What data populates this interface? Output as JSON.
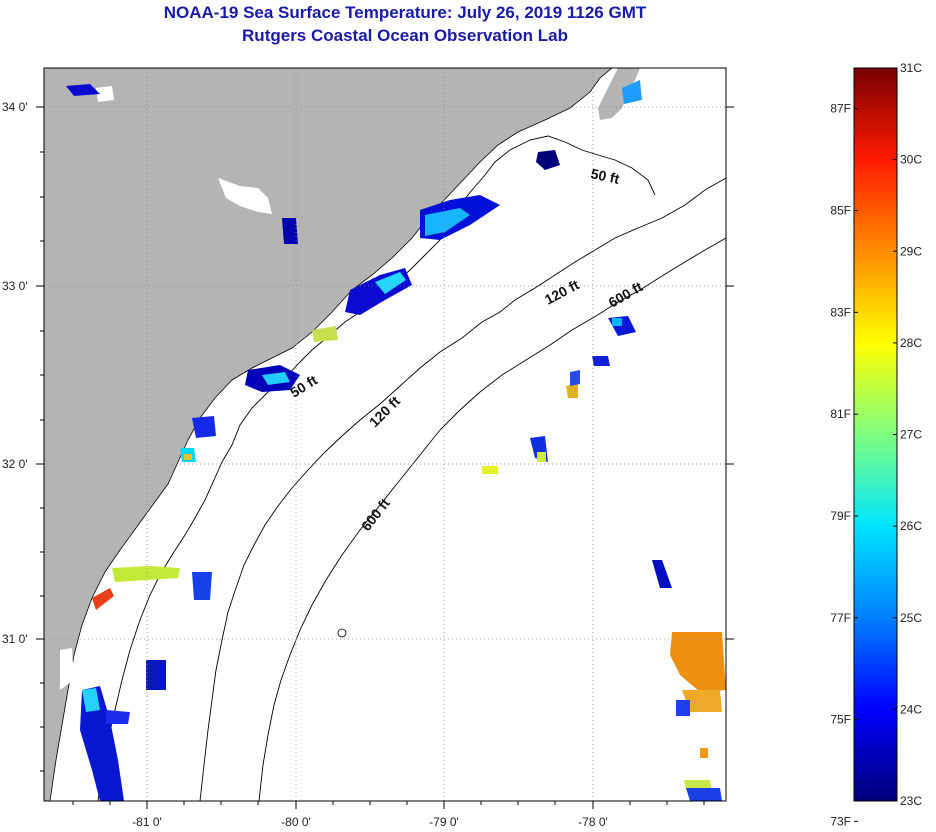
{
  "title": {
    "line1": "NOAA-19 Sea Surface Temperature:  July 26, 2019 1126 GMT",
    "line2": "Rutgers Coastal Ocean Observation Lab"
  },
  "map": {
    "lat_labels": [
      "34 0'",
      "33 0'",
      "32 0'",
      "31 0'"
    ],
    "lon_labels": [
      "-81 0'",
      "-80 0'",
      "-79 0'",
      "-78 0'"
    ],
    "contour_labels": [
      "50 ft",
      "120 ft",
      "600 ft",
      "50 ft",
      "120 ft",
      "600 ft"
    ],
    "colors": {
      "land": "#b4b4b4",
      "ocean": "#ffffff",
      "frame": "#000000"
    }
  },
  "colorbar": {
    "celsius_labels": [
      "31C",
      "30C",
      "29C",
      "28C",
      "27C",
      "26C",
      "25C",
      "24C",
      "23C"
    ],
    "fahrenheit_labels": [
      "87F",
      "85F",
      "83F",
      "81F",
      "79F",
      "77F",
      "75F",
      "73F"
    ],
    "range_c": [
      23,
      31
    ],
    "range_f": [
      73,
      87
    ],
    "gradient": [
      "#00007a",
      "#0000ff",
      "#0080ff",
      "#00e5ff",
      "#7fff7f",
      "#ffff00",
      "#ff8c00",
      "#ff1a00",
      "#7a0000"
    ]
  }
}
